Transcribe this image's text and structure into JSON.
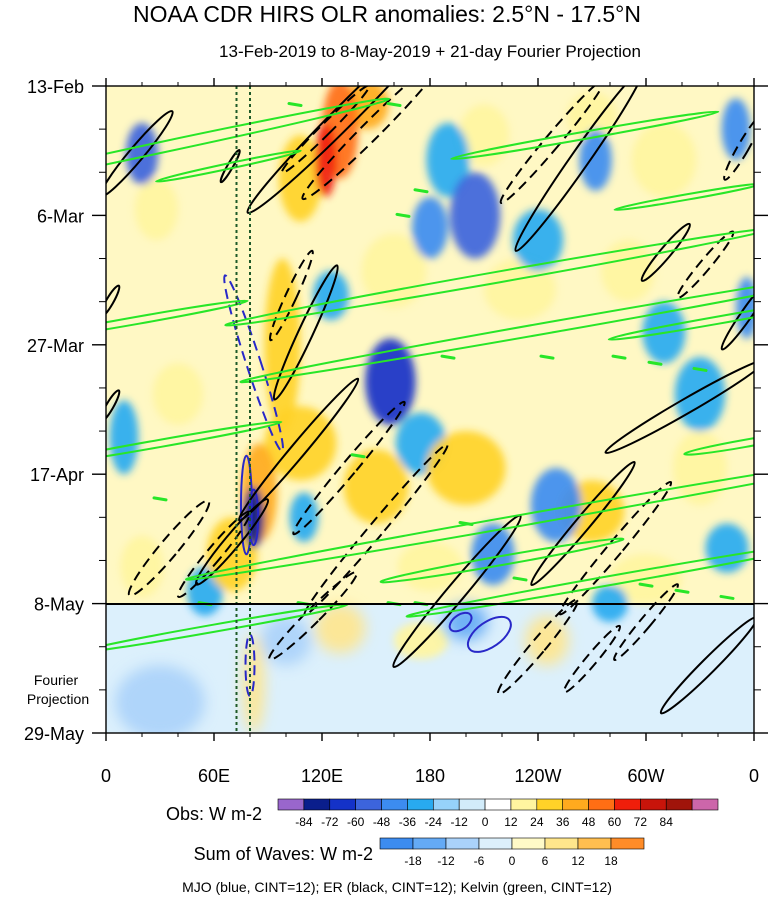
{
  "chart_data": {
    "type": "heatmap",
    "title": "NOAA CDR HIRS OLR anomalies: 2.5°N - 17.5°N",
    "subtitle": "13-Feb-2019 to 8-May-2019 + 21-day Fourier Projection",
    "x_ticks": [
      "0",
      "60E",
      "120E",
      "180",
      "120W",
      "60W",
      "0"
    ],
    "x_tick_degrees": [
      0,
      60,
      120,
      180,
      240,
      300,
      360
    ],
    "y_ticks": [
      "13-Feb",
      "6-Mar",
      "27-Mar",
      "17-Apr",
      "8-May",
      "29-May"
    ],
    "y_tick_days": [
      0,
      21,
      42,
      63,
      84,
      105
    ],
    "observation_end_label": "8-May",
    "projection_label": "Fourier\nProjection",
    "reference_lines_degrees": [
      72.5,
      80
    ],
    "obs_colorbar": {
      "label": "Obs: W m-2",
      "levels": [
        "-84",
        "-72",
        "-60",
        "-48",
        "-36",
        "-24",
        "-12",
        "0",
        "12",
        "24",
        "36",
        "48",
        "60",
        "72",
        "84"
      ],
      "colors": [
        "#9966cc",
        "#0a1e8c",
        "#1432c8",
        "#3c64dc",
        "#3c8cf0",
        "#28aaf0",
        "#96d2fa",
        "#d2ecfa",
        "#ffffff",
        "#fff5a0",
        "#ffd228",
        "#ffaa1e",
        "#ff6e14",
        "#f01e0a",
        "#c8140a",
        "#a0140a",
        "#cc66aa"
      ]
    },
    "waves_colorbar": {
      "label": "Sum of Waves: W m-2",
      "levels": [
        "-18",
        "-12",
        "-6",
        "0",
        "6",
        "12",
        "18"
      ],
      "colors": [
        "#3c8cf0",
        "#64aaf5",
        "#aad2fa",
        "#dcf0fc",
        "#fffac8",
        "#ffe68c",
        "#ffbe50",
        "#ff8c28"
      ]
    },
    "footnote": "MJO (blue, CINT=12); ER (black, CINT=12); Kelvin (green, CINT=12)",
    "contours": {
      "mjo": [
        {
          "lon": 78,
          "day": 68,
          "rx": 3,
          "ry": 8,
          "angle": 0,
          "dashed": false
        },
        {
          "lon": 82,
          "day": 70,
          "rx": 2.5,
          "ry": 4.5,
          "angle": 0,
          "dashed": false
        },
        {
          "lon": 82,
          "day": 45,
          "rx": 4,
          "ry": 15,
          "angle": -18,
          "dashed": true
        },
        {
          "lon": 80,
          "day": 94,
          "rx": 2.5,
          "ry": 5,
          "angle": 0,
          "dashed": true
        },
        {
          "lon": 213,
          "day": 89,
          "rx": 7,
          "ry": 4,
          "angle": 55,
          "dashed": false
        },
        {
          "lon": 197,
          "day": 87,
          "rx": 4,
          "ry": 2,
          "angle": 55,
          "dashed": false
        }
      ],
      "er": [
        {
          "lon": 132,
          "day": 5,
          "rx": 6,
          "ry": 22,
          "angle": 45,
          "dashed": false
        },
        {
          "lon": 148,
          "day": 7,
          "rx": 5,
          "ry": 16,
          "angle": 45,
          "dashed": true
        },
        {
          "lon": 122,
          "day": 7,
          "rx": 3,
          "ry": 10,
          "angle": 45,
          "dashed": true
        },
        {
          "lon": 248,
          "day": 9,
          "rx": 4,
          "ry": 13,
          "angle": 40,
          "dashed": true
        },
        {
          "lon": 263,
          "day": 12,
          "rx": 5,
          "ry": 18,
          "angle": 35,
          "dashed": false
        },
        {
          "lon": 17,
          "day": 11,
          "rx": 4,
          "ry": 9,
          "angle": 40,
          "dashed": false
        },
        {
          "lon": 69,
          "day": 13,
          "rx": 1.5,
          "ry": 3,
          "angle": 30,
          "dashed": false
        },
        {
          "lon": 103,
          "day": 34,
          "rx": 3,
          "ry": 8,
          "angle": 25,
          "dashed": true
        },
        {
          "lon": 111,
          "day": 40,
          "rx": 4,
          "ry": 12,
          "angle": 25,
          "dashed": false
        },
        {
          "lon": 107,
          "day": 59,
          "rx": 4,
          "ry": 15,
          "angle": 40,
          "dashed": false
        },
        {
          "lon": 135,
          "day": 62,
          "rx": 4,
          "ry": 14,
          "angle": 40,
          "dashed": true
        },
        {
          "lon": 150,
          "day": 72,
          "rx": 4,
          "ry": 18,
          "angle": 40,
          "dashed": true
        },
        {
          "lon": 115,
          "day": 86,
          "rx": 4,
          "ry": 10,
          "angle": 45,
          "dashed": true
        },
        {
          "lon": 35,
          "day": 75,
          "rx": 5,
          "ry": 10,
          "angle": 40,
          "dashed": true
        },
        {
          "lon": 60,
          "day": 76,
          "rx": 4,
          "ry": 9,
          "angle": 40,
          "dashed": true
        },
        {
          "lon": 70,
          "day": 74,
          "rx": 4,
          "ry": 9,
          "angle": 40,
          "dashed": false
        },
        {
          "lon": 195,
          "day": 82,
          "rx": 5,
          "ry": 16,
          "angle": 40,
          "dashed": false
        },
        {
          "lon": 265,
          "day": 71,
          "rx": 4,
          "ry": 13,
          "angle": 40,
          "dashed": false
        },
        {
          "lon": 283,
          "day": 75,
          "rx": 4,
          "ry": 14,
          "angle": 40,
          "dashed": true
        },
        {
          "lon": 322,
          "day": 52,
          "rx": 4,
          "ry": 15,
          "angle": 60,
          "dashed": false
        },
        {
          "lon": 333,
          "day": 29,
          "rx": 3,
          "ry": 7,
          "angle": 40,
          "dashed": true
        },
        {
          "lon": 311,
          "day": 27,
          "rx": 3,
          "ry": 6,
          "angle": 40,
          "dashed": false
        },
        {
          "lon": 356,
          "day": 37,
          "rx": 3,
          "ry": 7,
          "angle": 35,
          "dashed": false
        },
        {
          "lon": 354,
          "day": 10,
          "rx": 3,
          "ry": 6,
          "angle": 30,
          "dashed": true
        },
        {
          "lon": 240,
          "day": 91,
          "rx": 4,
          "ry": 10,
          "angle": 40,
          "dashed": true
        },
        {
          "lon": 270,
          "day": 93,
          "rx": 3,
          "ry": 7,
          "angle": 40,
          "dashed": true
        },
        {
          "lon": 335,
          "day": 94,
          "rx": 4,
          "ry": 11,
          "angle": 45,
          "dashed": false
        },
        {
          "lon": 300,
          "day": 87,
          "rx": 3,
          "ry": 8,
          "angle": 40,
          "dashed": true
        },
        {
          "lon": 2,
          "day": 35,
          "rx": 2,
          "ry": 3,
          "angle": 30,
          "dashed": false
        },
        {
          "lon": 2,
          "day": 52,
          "rx": 2,
          "ry": 3,
          "angle": 30,
          "dashed": false
        }
      ],
      "kelvin": [
        {
          "lon": 30,
          "day": 10,
          "rx": 3,
          "ry": 38,
          "angle": 78,
          "dashed": false
        },
        {
          "lon": 68,
          "day": 13,
          "rx": 1.5,
          "ry": 12,
          "angle": 78,
          "dashed": false
        },
        {
          "lon": 266,
          "day": 8,
          "rx": 2,
          "ry": 22,
          "angle": 80,
          "dashed": false
        },
        {
          "lon": 323,
          "day": 18,
          "rx": 1.5,
          "ry": 12,
          "angle": 80,
          "dashed": false
        },
        {
          "lon": 218,
          "day": 31,
          "rx": 3,
          "ry": 45,
          "angle": 80,
          "dashed": false
        },
        {
          "lon": 250,
          "day": 39,
          "rx": 3,
          "ry": 52,
          "angle": 80,
          "dashed": false
        },
        {
          "lon": 18,
          "day": 38,
          "rx": 2,
          "ry": 18,
          "angle": 80,
          "dashed": false
        },
        {
          "lon": 340,
          "day": 38,
          "rx": 2,
          "ry": 18,
          "angle": 80,
          "dashed": false
        },
        {
          "lon": 240,
          "day": 70,
          "rx": 3,
          "ry": 58,
          "angle": 80,
          "dashed": false
        },
        {
          "lon": 285,
          "day": 80,
          "rx": 2.5,
          "ry": 35,
          "angle": 80,
          "dashed": false
        },
        {
          "lon": 30,
          "day": 58,
          "rx": 2,
          "ry": 20,
          "angle": 80,
          "dashed": false
        },
        {
          "lon": 355,
          "day": 58,
          "rx": 2,
          "ry": 10,
          "angle": 80,
          "dashed": false
        },
        {
          "lon": 60,
          "day": 88,
          "rx": 2,
          "ry": 22,
          "angle": 80,
          "dashed": false
        },
        {
          "lon": 220,
          "day": 77,
          "rx": 2.5,
          "ry": 20,
          "angle": 80,
          "dashed": false
        }
      ],
      "kelvin_dashes": [
        {
          "lon": 105,
          "day": 3
        },
        {
          "lon": 160,
          "day": 3
        },
        {
          "lon": 165,
          "day": 21
        },
        {
          "lon": 175,
          "day": 17
        },
        {
          "lon": 245,
          "day": 44
        },
        {
          "lon": 285,
          "day": 44
        },
        {
          "lon": 305,
          "day": 45
        },
        {
          "lon": 330,
          "day": 46
        },
        {
          "lon": 140,
          "day": 60
        },
        {
          "lon": 200,
          "day": 71
        },
        {
          "lon": 230,
          "day": 80
        },
        {
          "lon": 300,
          "day": 81
        },
        {
          "lon": 320,
          "day": 82
        },
        {
          "lon": 345,
          "day": 83
        },
        {
          "lon": 110,
          "day": 84
        },
        {
          "lon": 160,
          "day": 84
        },
        {
          "lon": 175,
          "day": 84
        },
        {
          "lon": 30,
          "day": 67
        },
        {
          "lon": 55,
          "day": 84
        },
        {
          "lon": 190,
          "day": 44
        }
      ]
    },
    "anomaly_field": {
      "blobs": [
        {
          "lon": 130,
          "day": 7,
          "r_lon": 10,
          "r_day": 8,
          "value": 60
        },
        {
          "lon": 122,
          "day": 12,
          "r_lon": 6,
          "r_day": 6,
          "value": 72
        },
        {
          "lon": 145,
          "day": 3,
          "r_lon": 12,
          "r_day": 4,
          "value": 48
        },
        {
          "lon": 108,
          "day": 15,
          "r_lon": 12,
          "r_day": 7,
          "value": 36
        },
        {
          "lon": 98,
          "day": 42,
          "r_lon": 10,
          "r_day": 14,
          "value": 36
        },
        {
          "lon": 108,
          "day": 58,
          "r_lon": 20,
          "r_day": 6,
          "value": 36
        },
        {
          "lon": 85,
          "day": 66,
          "r_lon": 10,
          "r_day": 8,
          "value": 48
        },
        {
          "lon": 70,
          "day": 76,
          "r_lon": 14,
          "r_day": 6,
          "value": 36
        },
        {
          "lon": 160,
          "day": 30,
          "r_lon": 18,
          "r_day": 6,
          "value": 24
        },
        {
          "lon": 150,
          "day": 65,
          "r_lon": 18,
          "r_day": 6,
          "value": 36
        },
        {
          "lon": 200,
          "day": 62,
          "r_lon": 22,
          "r_day": 6,
          "value": 36
        },
        {
          "lon": 230,
          "day": 33,
          "r_lon": 20,
          "r_day": 5,
          "value": 24
        },
        {
          "lon": 290,
          "day": 30,
          "r_lon": 15,
          "r_day": 5,
          "value": 24
        },
        {
          "lon": 310,
          "day": 12,
          "r_lon": 18,
          "r_day": 6,
          "value": 24
        },
        {
          "lon": 210,
          "day": 8,
          "r_lon": 14,
          "r_day": 5,
          "value": 24
        },
        {
          "lon": 40,
          "day": 50,
          "r_lon": 14,
          "r_day": 5,
          "value": 24
        },
        {
          "lon": 270,
          "day": 69,
          "r_lon": 18,
          "r_day": 5,
          "value": 36
        },
        {
          "lon": 330,
          "day": 62,
          "r_lon": 15,
          "r_day": 6,
          "value": 24
        },
        {
          "lon": 300,
          "day": 80,
          "r_lon": 20,
          "r_day": 4,
          "value": 24
        },
        {
          "lon": 180,
          "day": 78,
          "r_lon": 18,
          "r_day": 4,
          "value": 24
        },
        {
          "lon": 20,
          "day": 78,
          "r_lon": 12,
          "r_day": 5,
          "value": 24
        },
        {
          "lon": 270,
          "day": 5,
          "r_lon": 14,
          "r_day": 4,
          "value": 24
        },
        {
          "lon": 175,
          "day": 90,
          "r_lon": 15,
          "r_day": 3,
          "value": 24
        },
        {
          "lon": 28,
          "day": 20,
          "r_lon": 12,
          "r_day": 5,
          "value": 24
        },
        {
          "lon": 20,
          "day": 11,
          "r_lon": 9,
          "r_day": 5,
          "value": -48
        },
        {
          "lon": 190,
          "day": 12,
          "r_lon": 12,
          "r_day": 6,
          "value": -24
        },
        {
          "lon": 205,
          "day": 21,
          "r_lon": 14,
          "r_day": 7,
          "value": -48
        },
        {
          "lon": 180,
          "day": 23,
          "r_lon": 10,
          "r_day": 5,
          "value": -36
        },
        {
          "lon": 272,
          "day": 12,
          "r_lon": 9,
          "r_day": 5,
          "value": -36
        },
        {
          "lon": 350,
          "day": 7,
          "r_lon": 8,
          "r_day": 5,
          "value": -36
        },
        {
          "lon": 158,
          "day": 48,
          "r_lon": 14,
          "r_day": 7,
          "value": -60
        },
        {
          "lon": 175,
          "day": 58,
          "r_lon": 14,
          "r_day": 5,
          "value": -24
        },
        {
          "lon": 250,
          "day": 68,
          "r_lon": 14,
          "r_day": 6,
          "value": -36
        },
        {
          "lon": 215,
          "day": 76,
          "r_lon": 12,
          "r_day": 5,
          "value": -36
        },
        {
          "lon": 82,
          "day": 70,
          "r_lon": 6,
          "r_day": 5,
          "value": -72
        },
        {
          "lon": 55,
          "day": 82,
          "r_lon": 10,
          "r_day": 4,
          "value": -24
        },
        {
          "lon": 10,
          "day": 57,
          "r_lon": 8,
          "r_day": 6,
          "value": -24
        },
        {
          "lon": 330,
          "day": 50,
          "r_lon": 14,
          "r_day": 6,
          "value": -24
        },
        {
          "lon": 356,
          "day": 36,
          "r_lon": 6,
          "r_day": 5,
          "value": -36
        },
        {
          "lon": 310,
          "day": 40,
          "r_lon": 12,
          "r_day": 5,
          "value": -24
        },
        {
          "lon": 125,
          "day": 34,
          "r_lon": 10,
          "r_day": 4,
          "value": -24
        },
        {
          "lon": 280,
          "day": 84,
          "r_lon": 10,
          "r_day": 3,
          "value": -24
        },
        {
          "lon": 345,
          "day": 75,
          "r_lon": 12,
          "r_day": 4,
          "value": -24
        },
        {
          "lon": 240,
          "day": 25,
          "r_lon": 14,
          "r_day": 5,
          "value": -24
        },
        {
          "lon": 110,
          "day": 70,
          "r_lon": 8,
          "r_day": 4,
          "value": -24
        }
      ],
      "projection": [
        {
          "lon": 82,
          "day": 97,
          "r_lon": 6,
          "r_day": 8,
          "value": 12
        },
        {
          "lon": 130,
          "day": 88,
          "r_lon": 14,
          "r_day": 4,
          "value": 12
        },
        {
          "lon": 245,
          "day": 90,
          "r_lon": 12,
          "r_day": 4,
          "value": 12
        },
        {
          "lon": 200,
          "day": 87,
          "r_lon": 12,
          "r_day": 3,
          "value": -12
        },
        {
          "lon": 100,
          "day": 90,
          "r_lon": 14,
          "r_day": 4,
          "value": -6
        },
        {
          "lon": 30,
          "day": 100,
          "r_lon": 25,
          "r_day": 6,
          "value": -6
        }
      ]
    }
  }
}
